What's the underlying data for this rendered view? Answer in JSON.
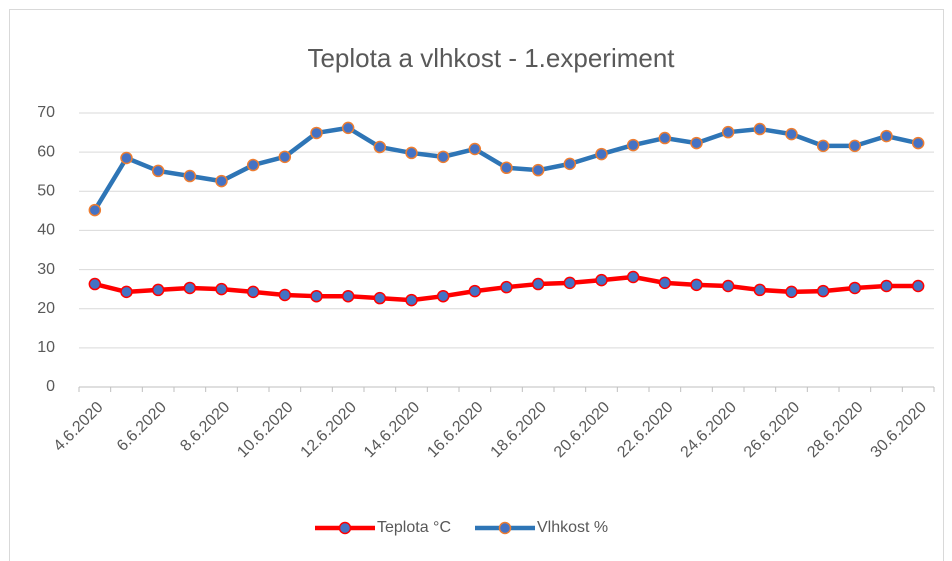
{
  "chart_data": {
    "type": "line",
    "title": "Teplota a vlhkost - 1.experiment",
    "categories": [
      "4.6.2020",
      null,
      "6.6.2020",
      null,
      "8.6.2020",
      null,
      "10.6.2020",
      null,
      "12.6.2020",
      null,
      "14.6.2020",
      null,
      "16.6.2020",
      null,
      "18.6.2020",
      null,
      "20.6.2020",
      null,
      "22.6.2020",
      null,
      "24.6.2020",
      null,
      "26.6.2020",
      null,
      "28.6.2020",
      null,
      "30.6.2020"
    ],
    "series": [
      {
        "name": "Teplota °C",
        "color": "#ff0000",
        "marker_color": "#4472c4",
        "marker_edge_color": "#ff0000",
        "values": [
          26.3,
          24.3,
          24.8,
          25.3,
          25.0,
          24.3,
          23.5,
          23.2,
          23.2,
          22.7,
          22.2,
          23.2,
          24.5,
          25.5,
          26.3,
          26.6,
          27.3,
          28.1,
          26.6,
          26.1,
          25.8,
          24.8,
          24.3,
          24.5,
          25.3,
          25.8,
          25.8
        ]
      },
      {
        "name": "Vlhkost %",
        "color": "#2e75b6",
        "marker_color": "#4472c4",
        "marker_edge_color": "#ed7d31",
        "values": [
          45.2,
          58.5,
          55.2,
          53.9,
          52.6,
          56.7,
          58.8,
          64.9,
          66.2,
          61.3,
          59.8,
          58.8,
          60.8,
          56.0,
          55.4,
          57.0,
          59.5,
          61.8,
          63.6,
          62.3,
          65.1,
          65.9,
          64.6,
          61.6,
          61.6,
          64.1,
          62.3
        ]
      }
    ],
    "ylim": [
      0,
      70
    ],
    "yticks": [
      0,
      10,
      20,
      30,
      40,
      50,
      60,
      70
    ],
    "grid": true,
    "legend": "bottom"
  }
}
